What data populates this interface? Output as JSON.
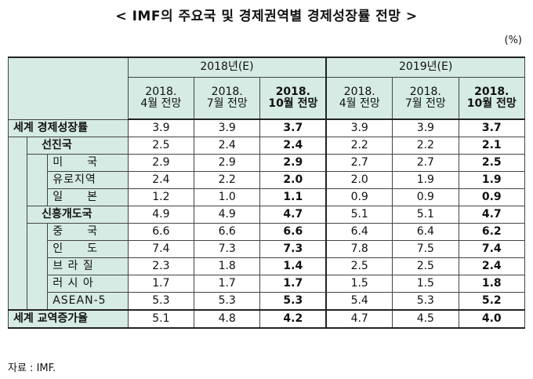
{
  "title": "< IMF의 주요국 및 경제권역별 경제성장률 전망 >",
  "unit": "(%)",
  "source": "자료 : IMF.",
  "header": {
    "year1": "2018년(E)",
    "year2": "2019년(E)",
    "sub": [
      [
        "2018.",
        "4월 전망"
      ],
      [
        "2018.",
        "7월 전망"
      ],
      [
        "2018.",
        "10월 전망"
      ],
      [
        "2018.",
        "4월 전망"
      ],
      [
        "2018.",
        "7월 전망"
      ],
      [
        "2018.",
        "10월 전망"
      ]
    ]
  },
  "rows": [
    {
      "label": "세계 경제성장률",
      "level": 0,
      "values": [
        "3.9",
        "3.9",
        "3.7",
        "3.9",
        "3.9",
        "3.7"
      ]
    },
    {
      "label": "선진국",
      "level": 1,
      "values": [
        "2.5",
        "2.4",
        "2.4",
        "2.2",
        "2.2",
        "2.1"
      ]
    },
    {
      "label": "미　　국",
      "level": 2,
      "values": [
        "2.9",
        "2.9",
        "2.9",
        "2.7",
        "2.7",
        "2.5"
      ]
    },
    {
      "label": "유로지역",
      "level": 2,
      "values": [
        "2.4",
        "2.2",
        "2.0",
        "2.0",
        "1.9",
        "1.9"
      ]
    },
    {
      "label": "일　　본",
      "level": 2,
      "values": [
        "1.2",
        "1.0",
        "1.1",
        "0.9",
        "0.9",
        "0.9"
      ]
    },
    {
      "label": "신흥개도국",
      "level": 1,
      "values": [
        "4.9",
        "4.9",
        "4.7",
        "5.1",
        "5.1",
        "4.7"
      ]
    },
    {
      "label": "중　　국",
      "level": 2,
      "values": [
        "6.6",
        "6.6",
        "6.6",
        "6.4",
        "6.4",
        "6.2"
      ]
    },
    {
      "label": "인　　도",
      "level": 2,
      "values": [
        "7.4",
        "7.3",
        "7.3",
        "7.8",
        "7.5",
        "7.4"
      ]
    },
    {
      "label": "브 라 질",
      "level": 2,
      "values": [
        "2.3",
        "1.8",
        "1.4",
        "2.5",
        "2.5",
        "2.4"
      ]
    },
    {
      "label": "러 시 아",
      "level": 2,
      "values": [
        "1.7",
        "1.7",
        "1.7",
        "1.5",
        "1.5",
        "1.8"
      ]
    },
    {
      "label": "ASEAN-5",
      "level": 2,
      "values": [
        "5.3",
        "5.3",
        "5.3",
        "5.4",
        "5.3",
        "5.2"
      ]
    },
    {
      "label": "세계 교역증가율",
      "level": 0,
      "values": [
        "5.1",
        "4.8",
        "4.2",
        "4.7",
        "4.5",
        "4.0"
      ]
    }
  ]
}
